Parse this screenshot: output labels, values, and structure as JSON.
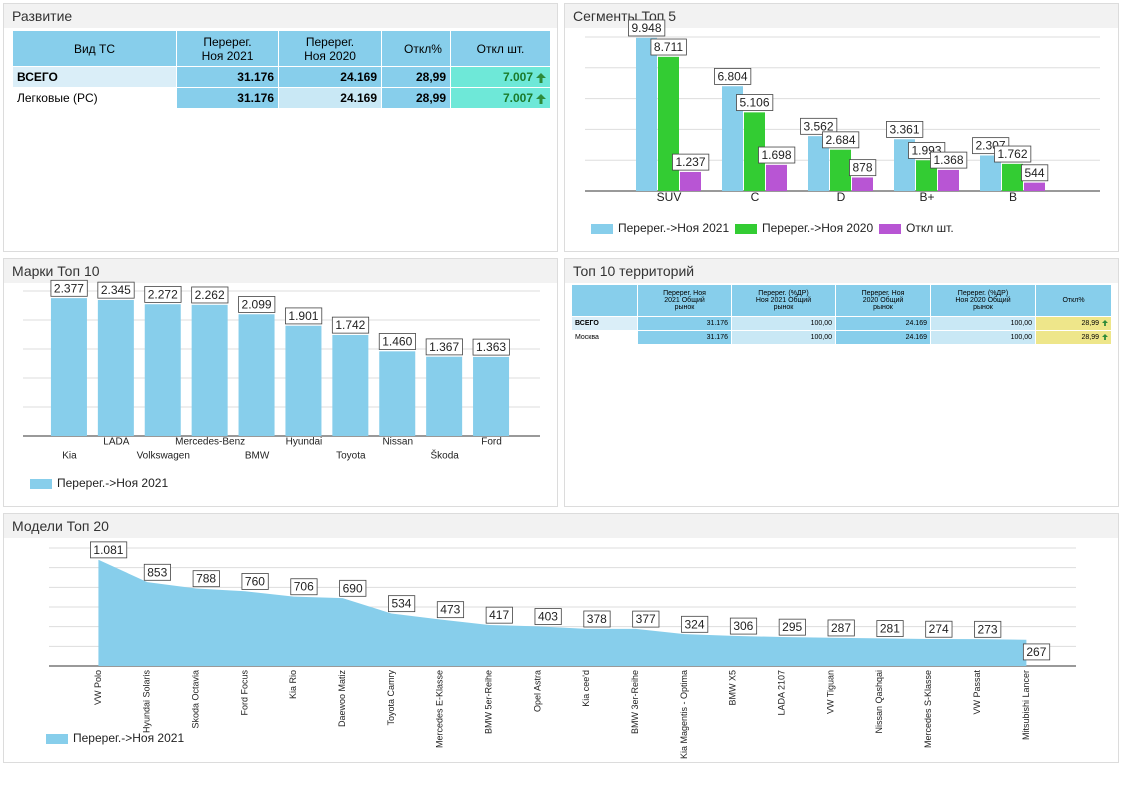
{
  "development": {
    "title": "Развитие",
    "header": [
      "Вид ТС",
      "Перерег. Ноя 2021",
      "Перерег. Ноя 2020",
      "Откл%",
      "Откл шт."
    ],
    "rows": [
      [
        "ВСЕГО",
        "31.176",
        "24.169",
        "28,99",
        "7.007"
      ],
      [
        "Легковые (PC)",
        "31.176",
        "24.169",
        "28,99",
        "7.007"
      ]
    ]
  },
  "territories": {
    "title": "Топ 10 территорий",
    "header": [
      "Перерег. Ноя 2021 Общий рынок",
      "Перерег. (%ДР) Ноя 2021 Общий рынок",
      "Перерег. Ноя 2020 Общий рынок",
      "Перерег. (%ДР) Ноя 2020 Общий рынок",
      "Откл%"
    ],
    "rows": [
      [
        "ВСЕГО",
        "31.176",
        "100,00",
        "24.169",
        "100,00",
        "28,99"
      ],
      [
        "Москва",
        "31.176",
        "100,00",
        "24.169",
        "100,00",
        "28,99"
      ]
    ]
  },
  "chart_data": [
    {
      "type": "bar",
      "title": "Сегменты Топ 5",
      "categories": [
        "SUV",
        "C",
        "D",
        "B+",
        "B"
      ],
      "series": [
        {
          "name": "Перерег.->Ноя 2021",
          "color": "#87ceeb",
          "values": [
            9948,
            6804,
            3562,
            3361,
            2307
          ],
          "value_labels": [
            "9.948",
            "6.804",
            "3.562",
            "3.361",
            "2.307"
          ]
        },
        {
          "name": "Перерег.->Ноя 2020",
          "color": "#33cc33",
          "values": [
            8711,
            5106,
            2684,
            1993,
            1762
          ],
          "value_labels": [
            "8.711",
            "5.106",
            "2.684",
            "1.993",
            "1.762"
          ]
        },
        {
          "name": "Откл шт.",
          "color": "#b855d4",
          "values": [
            1237,
            1698,
            878,
            1368,
            544
          ],
          "value_labels": [
            "1.237",
            "1.698",
            "878",
            "1.368",
            "544"
          ]
        }
      ],
      "ylim": [
        0,
        10000
      ],
      "yticks": [
        0,
        2000,
        4000,
        6000,
        8000,
        10000
      ],
      "grid": true
    },
    {
      "type": "bar",
      "title": "Марки Топ 10",
      "categories": [
        "Kia",
        "LADA",
        "Volkswagen",
        "Mercedes-Benz",
        "BMW",
        "Hyundai",
        "Toyota",
        "Nissan",
        "Škoda",
        "Ford"
      ],
      "series": [
        {
          "name": "Перерег.->Ноя 2021",
          "color": "#87ceeb",
          "values": [
            2377,
            2345,
            2272,
            2262,
            2099,
            1901,
            1742,
            1460,
            1367,
            1363
          ],
          "value_labels": [
            "2.377",
            "2.345",
            "2.272",
            "2.262",
            "2.099",
            "1.901",
            "1.742",
            "1.460",
            "1.367",
            "1.363"
          ]
        }
      ],
      "ylim": [
        0,
        2500
      ],
      "yticks": [
        0,
        500,
        1000,
        1500,
        2000,
        2500
      ],
      "grid": true
    },
    {
      "type": "area",
      "title": "Модели Топ 20",
      "categories": [
        "VW Polo",
        "Hyundai Solaris",
        "Skoda Octavia",
        "Ford Focus",
        "Kia Rio",
        "Daewoo Matiz",
        "Toyota Camry",
        "Mercedes E-Klasse",
        "BMW 5er-Reihe",
        "Opel Astra",
        "Kia cee'd",
        "BMW 3er-Reihe",
        "Kia Magentis - Optima",
        "BMW X5",
        "LADA 2107",
        "VW Tiguan",
        "Nissan Qashqai",
        "Mercedes S-Klasse",
        "VW Passat",
        "Mitsubishi Lancer"
      ],
      "series": [
        {
          "name": "Перерег.->Ноя 2021",
          "color": "#87ceeb",
          "values": [
            1081,
            853,
            788,
            760,
            706,
            690,
            534,
            473,
            417,
            403,
            378,
            377,
            324,
            306,
            295,
            287,
            281,
            274,
            273,
            267
          ],
          "value_labels": [
            "1.081",
            "853",
            "788",
            "760",
            "706",
            "690",
            "534",
            "473",
            "417",
            "403",
            "378",
            "377",
            "324",
            "306",
            "295",
            "287",
            "281",
            "274",
            "273",
            "267"
          ]
        }
      ],
      "ylim": [
        0,
        1200
      ],
      "yticks": [
        0,
        200,
        400,
        600,
        800,
        1000,
        1200
      ],
      "grid": true
    }
  ]
}
